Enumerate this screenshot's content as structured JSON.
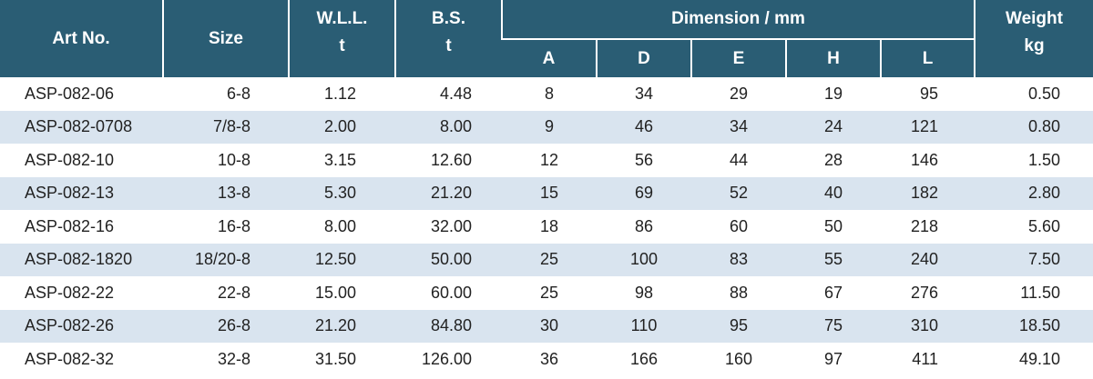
{
  "headers": {
    "art_no": "Art No.",
    "size": "Size",
    "wll": "W.L.L.",
    "wll_unit": "t",
    "bs": "B.S.",
    "bs_unit": "t",
    "dimension": "Dimension / mm",
    "a": "A",
    "d": "D",
    "e": "E",
    "h": "H",
    "l": "L",
    "weight": "Weight",
    "weight_unit": "kg"
  },
  "colors": {
    "header_bg": "#2a5d74",
    "stripe_bg": "#d9e4ef"
  },
  "rows": [
    {
      "art": "ASP-082-06",
      "size": "6-8",
      "wll": "1.12",
      "bs": "4.48",
      "a": "8",
      "d": "34",
      "e": "29",
      "h": "19",
      "l": "95",
      "weight": "0.50"
    },
    {
      "art": "ASP-082-0708",
      "size": "7/8-8",
      "wll": "2.00",
      "bs": "8.00",
      "a": "9",
      "d": "46",
      "e": "34",
      "h": "24",
      "l": "121",
      "weight": "0.80"
    },
    {
      "art": "ASP-082-10",
      "size": "10-8",
      "wll": "3.15",
      "bs": "12.60",
      "a": "12",
      "d": "56",
      "e": "44",
      "h": "28",
      "l": "146",
      "weight": "1.50"
    },
    {
      "art": "ASP-082-13",
      "size": "13-8",
      "wll": "5.30",
      "bs": "21.20",
      "a": "15",
      "d": "69",
      "e": "52",
      "h": "40",
      "l": "182",
      "weight": "2.80"
    },
    {
      "art": "ASP-082-16",
      "size": "16-8",
      "wll": "8.00",
      "bs": "32.00",
      "a": "18",
      "d": "86",
      "e": "60",
      "h": "50",
      "l": "218",
      "weight": "5.60"
    },
    {
      "art": "ASP-082-1820",
      "size": "18/20-8",
      "wll": "12.50",
      "bs": "50.00",
      "a": "25",
      "d": "100",
      "e": "83",
      "h": "55",
      "l": "240",
      "weight": "7.50"
    },
    {
      "art": "ASP-082-22",
      "size": "22-8",
      "wll": "15.00",
      "bs": "60.00",
      "a": "25",
      "d": "98",
      "e": "88",
      "h": "67",
      "l": "276",
      "weight": "11.50"
    },
    {
      "art": "ASP-082-26",
      "size": "26-8",
      "wll": "21.20",
      "bs": "84.80",
      "a": "30",
      "d": "110",
      "e": "95",
      "h": "75",
      "l": "310",
      "weight": "18.50"
    },
    {
      "art": "ASP-082-32",
      "size": "32-8",
      "wll": "31.50",
      "bs": "126.00",
      "a": "36",
      "d": "166",
      "e": "160",
      "h": "97",
      "l": "411",
      "weight": "49.10"
    }
  ]
}
